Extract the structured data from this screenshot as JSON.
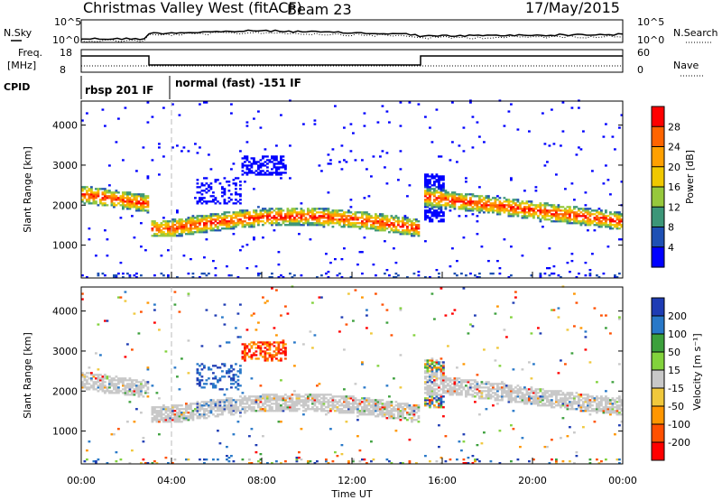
{
  "header": {
    "station": "Christmas Valley West (fitACF)",
    "beam": "Beam 23",
    "date": "17/May/2015"
  },
  "top_panels": {
    "nsky_label": "N.Sky",
    "nsearch_label": "N.Search",
    "noise_ticks_left": [
      "10^5",
      "10^0"
    ],
    "noise_ticks_right": [
      "10^5",
      "10^0"
    ],
    "freq_label": "Freq.",
    "freq_unit": "[MHz]",
    "freq_ticks": [
      "18",
      "8"
    ],
    "nave_label": "Nave",
    "nave_ticks": [
      "60",
      "0"
    ],
    "cpid_label": "CPID",
    "cpid_segments": [
      {
        "label": "rbsp 201 IF",
        "start_hour": 0,
        "end_hour": 3.9
      },
      {
        "label": "normal (fast) -151 IF",
        "start_hour": 3.9,
        "end_hour": 24
      }
    ]
  },
  "chart_data": [
    {
      "type": "heatmap",
      "name": "power",
      "ylabel": "Slant Range [km]",
      "ylim": [
        180,
        4600
      ],
      "yticks": [
        1000,
        2000,
        3000,
        4000
      ],
      "colorbar": {
        "label": "Power [dB]",
        "ticks": [
          "28",
          "24",
          "20",
          "16",
          "12",
          "8",
          "4"
        ],
        "colors": [
          "#ff0000",
          "#ff6400",
          "#ffa000",
          "#f0c800",
          "#96c83c",
          "#3c9678",
          "#1e50b4",
          "#0000ff"
        ]
      }
    },
    {
      "type": "heatmap",
      "name": "velocity",
      "ylabel": "Slant Range [km]",
      "ylim": [
        180,
        4600
      ],
      "yticks": [
        1000,
        2000,
        3000,
        4000
      ],
      "colorbar": {
        "label": "Velocity [m s⁻¹]",
        "ticks": [
          "200",
          "100",
          "50",
          "15",
          "-15",
          "-50",
          "-100",
          "-200"
        ],
        "colors": [
          "#1e3cb4",
          "#2878c8",
          "#3ca03c",
          "#82d23c",
          "#c8c8c8",
          "#f0c83c",
          "#ff9600",
          "#ff5000",
          "#ff0000"
        ]
      }
    }
  ],
  "xaxis": {
    "label": "Time UT",
    "xlim": [
      0,
      24
    ],
    "ticks": [
      "00:00",
      "04:00",
      "08:00",
      "12:00",
      "16:00",
      "20:00",
      "00:00"
    ]
  },
  "colors": {
    "ground_scatter": "#c8c8c8",
    "frame": "#000000"
  }
}
